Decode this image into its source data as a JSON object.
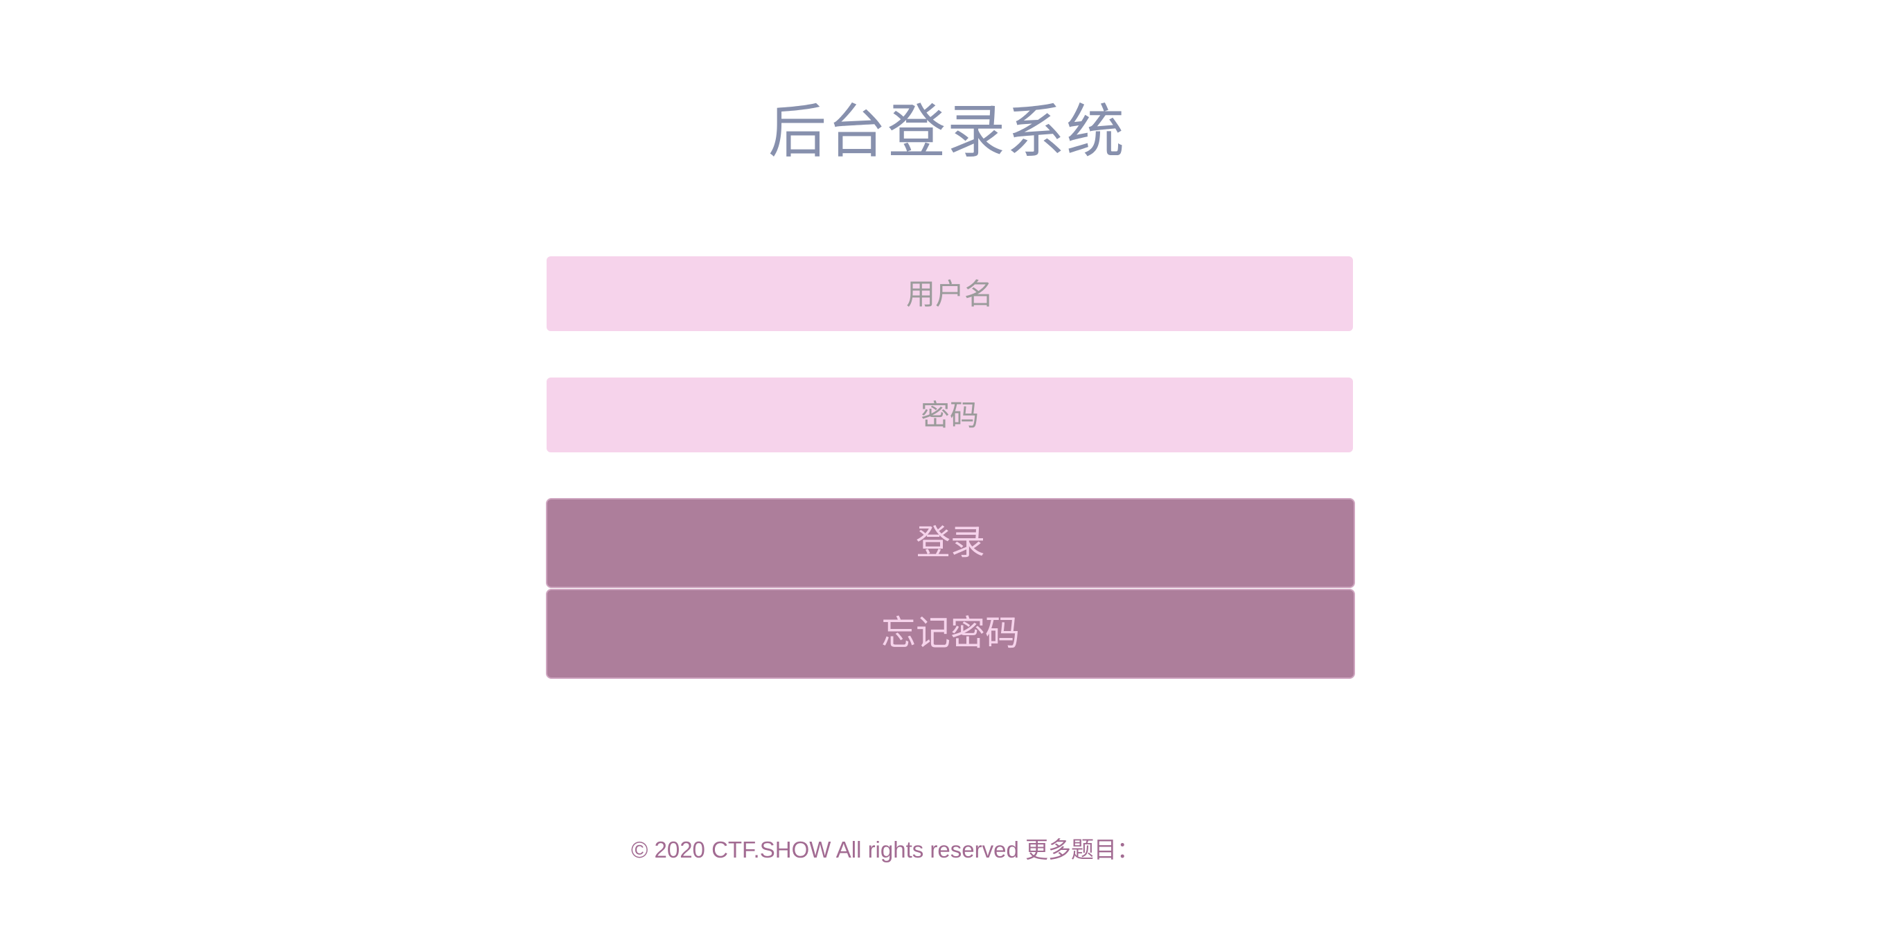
{
  "page": {
    "title": "后台登录系统"
  },
  "form": {
    "username_placeholder": "用户名",
    "password_placeholder": "密码",
    "login_label": "登录",
    "forgot_label": "忘记密码"
  },
  "footer": {
    "text": "© 2020 CTF.SHOW All rights reserved 更多题目："
  },
  "colors": {
    "title": "#8790ad",
    "input_bg": "#f6d3eb",
    "button_bg": "#ad7e9b",
    "button_text": "#f6d3eb",
    "footer_text": "#a26b92"
  }
}
